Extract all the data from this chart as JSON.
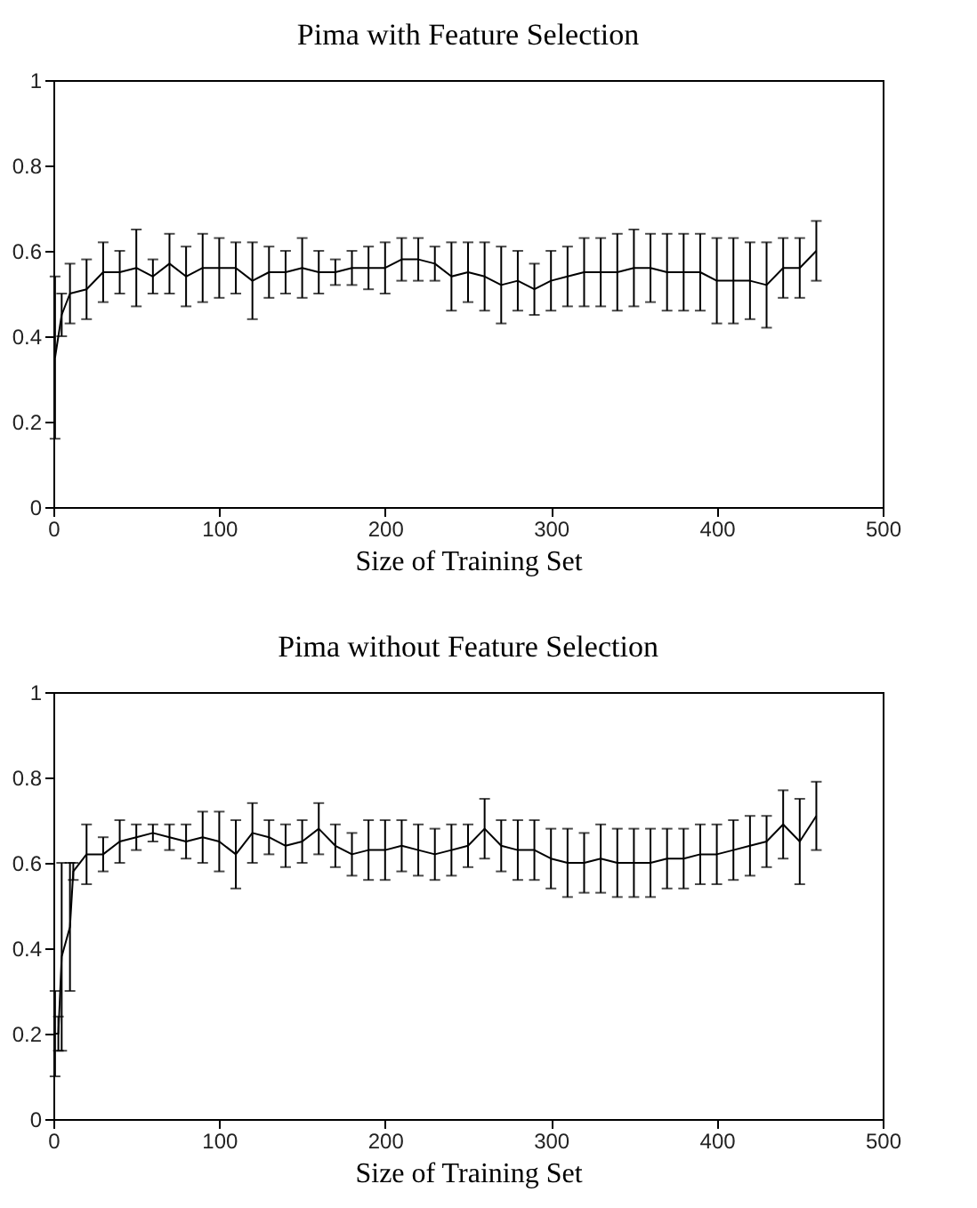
{
  "chart_data": [
    {
      "type": "line",
      "title": "Pima with Feature Selection",
      "xlabel": "Size of Training Set",
      "xlim": [
        0,
        500
      ],
      "xticks": [
        0,
        100,
        200,
        300,
        400,
        500
      ],
      "ylim": [
        0,
        1
      ],
      "yticks": [
        0,
        0.2,
        0.4,
        0.6,
        0.8,
        1
      ],
      "line_style": "solid",
      "x": [
        1,
        5,
        10,
        20,
        30,
        40,
        50,
        60,
        70,
        80,
        90,
        100,
        110,
        120,
        130,
        140,
        150,
        160,
        170,
        180,
        190,
        200,
        210,
        220,
        230,
        240,
        250,
        260,
        270,
        280,
        290,
        300,
        310,
        320,
        330,
        340,
        350,
        360,
        370,
        380,
        390,
        400,
        410,
        420,
        430,
        440,
        450,
        460
      ],
      "series": [
        {
          "color": "#000000",
          "values": [
            0.35,
            0.45,
            0.5,
            0.51,
            0.55,
            0.55,
            0.56,
            0.54,
            0.57,
            0.54,
            0.56,
            0.56,
            0.56,
            0.53,
            0.55,
            0.55,
            0.56,
            0.55,
            0.55,
            0.56,
            0.56,
            0.56,
            0.58,
            0.58,
            0.57,
            0.54,
            0.55,
            0.54,
            0.52,
            0.53,
            0.51,
            0.53,
            0.54,
            0.55,
            0.55,
            0.55,
            0.56,
            0.56,
            0.55,
            0.55,
            0.55,
            0.53,
            0.53,
            0.53,
            0.52,
            0.56,
            0.56,
            0.6
          ],
          "errors": [
            0.19,
            0.05,
            0.07,
            0.07,
            0.07,
            0.05,
            0.09,
            0.04,
            0.07,
            0.07,
            0.08,
            0.07,
            0.06,
            0.09,
            0.06,
            0.05,
            0.07,
            0.05,
            0.03,
            0.04,
            0.05,
            0.06,
            0.05,
            0.05,
            0.04,
            0.08,
            0.07,
            0.08,
            0.09,
            0.07,
            0.06,
            0.07,
            0.07,
            0.08,
            0.08,
            0.09,
            0.09,
            0.08,
            0.09,
            0.09,
            0.09,
            0.1,
            0.1,
            0.09,
            0.1,
            0.07,
            0.07,
            0.07
          ]
        }
      ]
    },
    {
      "type": "line",
      "title": "Pima without Feature Selection",
      "xlabel": "Size of Training Set",
      "xlim": [
        0,
        500
      ],
      "xticks": [
        0,
        100,
        200,
        300,
        400,
        500
      ],
      "ylim": [
        0,
        1
      ],
      "yticks": [
        0,
        0.2,
        0.4,
        0.6,
        0.8,
        1
      ],
      "line_style": "solid",
      "x": [
        1,
        3,
        5,
        10,
        12,
        20,
        30,
        40,
        50,
        60,
        70,
        80,
        90,
        100,
        110,
        120,
        130,
        140,
        150,
        160,
        170,
        180,
        190,
        200,
        210,
        220,
        230,
        240,
        250,
        260,
        270,
        280,
        290,
        300,
        310,
        320,
        330,
        340,
        350,
        360,
        370,
        380,
        390,
        400,
        410,
        420,
        430,
        440,
        450,
        460
      ],
      "series": [
        {
          "color": "#000000",
          "values": [
            0.2,
            0.2,
            0.38,
            0.45,
            0.58,
            0.62,
            0.62,
            0.65,
            0.66,
            0.67,
            0.66,
            0.65,
            0.66,
            0.65,
            0.62,
            0.67,
            0.66,
            0.64,
            0.65,
            0.68,
            0.64,
            0.62,
            0.63,
            0.63,
            0.64,
            0.63,
            0.62,
            0.63,
            0.64,
            0.68,
            0.64,
            0.63,
            0.63,
            0.61,
            0.6,
            0.6,
            0.61,
            0.6,
            0.6,
            0.6,
            0.61,
            0.61,
            0.62,
            0.62,
            0.63,
            0.64,
            0.65,
            0.69,
            0.65,
            0.71
          ],
          "errors": [
            0.1,
            0.04,
            0.22,
            0.15,
            0.02,
            0.07,
            0.04,
            0.05,
            0.03,
            0.02,
            0.03,
            0.04,
            0.06,
            0.07,
            0.08,
            0.07,
            0.04,
            0.05,
            0.05,
            0.06,
            0.05,
            0.05,
            0.07,
            0.07,
            0.06,
            0.06,
            0.06,
            0.06,
            0.05,
            0.07,
            0.06,
            0.07,
            0.07,
            0.07,
            0.08,
            0.07,
            0.08,
            0.08,
            0.08,
            0.08,
            0.07,
            0.07,
            0.07,
            0.07,
            0.07,
            0.07,
            0.06,
            0.08,
            0.1,
            0.08
          ]
        }
      ]
    }
  ]
}
